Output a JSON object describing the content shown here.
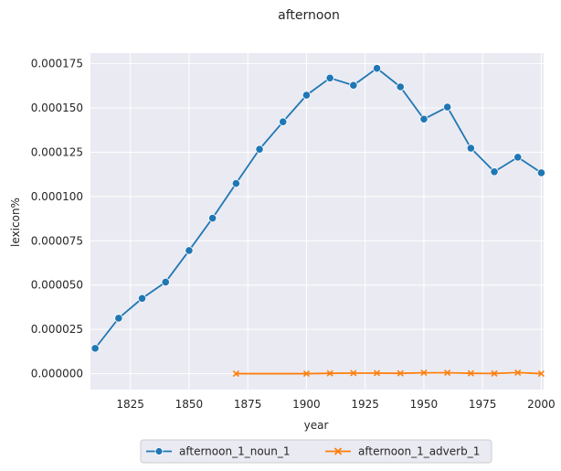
{
  "chart_data": {
    "type": "line",
    "title": "afternoon",
    "xlabel": "year",
    "ylabel": "lexicon%",
    "xlim": [
      1808,
      2001
    ],
    "ylim": [
      -9e-06,
      0.000181
    ],
    "xticks": [
      1825,
      1850,
      1875,
      1900,
      1925,
      1950,
      1975,
      2000
    ],
    "yticks": [
      0.0,
      2.5e-05,
      5e-05,
      7.5e-05,
      0.0001,
      0.000125,
      0.00015,
      0.000175
    ],
    "ytick_labels": [
      "0.000000",
      "0.000025",
      "0.000050",
      "0.000075",
      "0.000100",
      "0.000125",
      "0.000150",
      "0.000175"
    ],
    "grid": true,
    "legend_position": "bottom-center",
    "series": [
      {
        "name": "afternoon_1_noun_1",
        "color": "#1f77b4",
        "marker": "circle",
        "x": [
          1810,
          1820,
          1830,
          1840,
          1850,
          1860,
          1870,
          1880,
          1890,
          1900,
          1910,
          1920,
          1930,
          1940,
          1950,
          1960,
          1970,
          1980,
          1990,
          2000
        ],
        "y": [
          1.43e-05,
          3.13e-05,
          4.25e-05,
          5.17e-05,
          6.95e-05,
          8.78e-05,
          0.0001074,
          0.0001267,
          0.0001422,
          0.0001572,
          0.0001669,
          0.0001628,
          0.0001724,
          0.0001619,
          0.0001437,
          0.0001505,
          0.0001273,
          0.000114,
          0.0001222,
          0.0001134
        ]
      },
      {
        "name": "afternoon_1_adverb_1",
        "color": "#ff7f0e",
        "marker": "x",
        "x": [
          1870,
          1900,
          1910,
          1920,
          1930,
          1940,
          1950,
          1960,
          1970,
          1980,
          1990,
          2000
        ],
        "y": [
          0.0,
          0.0,
          2e-07,
          3e-07,
          3e-07,
          2e-07,
          5e-07,
          5e-07,
          2e-07,
          1e-07,
          6e-07,
          0.0
        ]
      }
    ]
  }
}
